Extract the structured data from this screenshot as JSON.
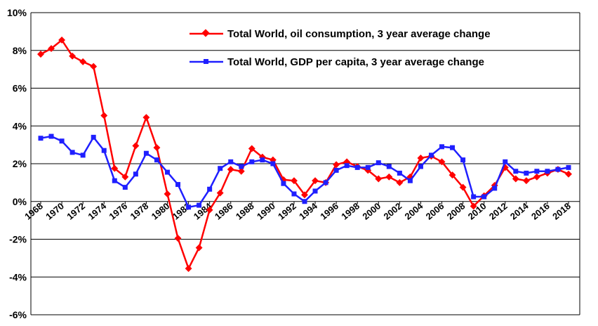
{
  "chart_data": {
    "type": "line",
    "title": "",
    "xlabel": "",
    "ylabel": "",
    "ylim": [
      -6,
      10
    ],
    "y_ticks": [
      "-6%",
      "-4%",
      "-2%",
      "0%",
      "2%",
      "4%",
      "6%",
      "8%",
      "10%"
    ],
    "x_tick_labels": [
      "1968",
      "1970",
      "1972",
      "1974",
      "1976",
      "1978",
      "1980",
      "1982",
      "1984",
      "1986",
      "1988",
      "1990",
      "1992",
      "1994",
      "1996",
      "1998",
      "2000",
      "2002",
      "2004",
      "2006",
      "2008",
      "2010",
      "2012",
      "2014",
      "2016",
      "2018"
    ],
    "x": [
      1968,
      1969,
      1970,
      1971,
      1972,
      1973,
      1974,
      1975,
      1976,
      1977,
      1978,
      1979,
      1980,
      1981,
      1982,
      1983,
      1984,
      1985,
      1986,
      1987,
      1988,
      1989,
      1990,
      1991,
      1992,
      1993,
      1994,
      1995,
      1996,
      1997,
      1998,
      1999,
      2000,
      2001,
      2002,
      2003,
      2004,
      2005,
      2006,
      2007,
      2008,
      2009,
      2010,
      2011,
      2012,
      2013,
      2014,
      2015,
      2016,
      2017,
      2018
    ],
    "grid": true,
    "legend_position": "top-center",
    "series": [
      {
        "name": "Total World, oil consumption, 3 year average change",
        "color": "#ff0000",
        "marker": "diamond",
        "values": [
          7.8,
          8.1,
          8.55,
          7.7,
          7.4,
          7.15,
          4.55,
          1.75,
          1.3,
          2.95,
          4.45,
          2.85,
          0.4,
          -1.95,
          -3.55,
          -2.45,
          -0.45,
          0.45,
          1.7,
          1.6,
          2.8,
          2.35,
          2.2,
          1.15,
          1.1,
          0.35,
          1.1,
          1.0,
          1.95,
          2.1,
          1.85,
          1.65,
          1.2,
          1.3,
          1.0,
          1.3,
          2.3,
          2.4,
          2.1,
          1.4,
          0.75,
          -0.25,
          0.3,
          0.85,
          1.8,
          1.2,
          1.1,
          1.3,
          1.5,
          1.7,
          1.45
        ]
      },
      {
        "name": "Total World, GDP per capita, 3 year average change",
        "color": "#1f1fff",
        "marker": "square",
        "values": [
          3.35,
          3.45,
          3.2,
          2.6,
          2.45,
          3.4,
          2.7,
          1.1,
          0.75,
          1.45,
          2.55,
          2.2,
          1.55,
          0.9,
          -0.3,
          -0.2,
          0.65,
          1.75,
          2.1,
          1.85,
          2.1,
          2.2,
          2.0,
          0.95,
          0.4,
          0.0,
          0.55,
          1.0,
          1.65,
          1.9,
          1.8,
          1.8,
          2.05,
          1.85,
          1.5,
          1.1,
          1.85,
          2.45,
          2.9,
          2.85,
          2.2,
          0.25,
          0.25,
          0.7,
          2.1,
          1.6,
          1.5,
          1.6,
          1.6,
          1.7,
          1.8
        ]
      }
    ]
  }
}
